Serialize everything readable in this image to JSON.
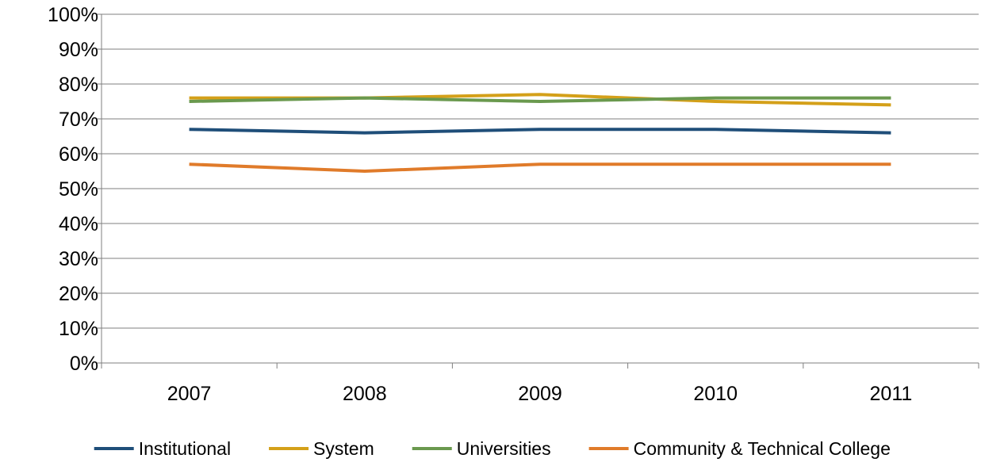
{
  "chart_data": {
    "type": "line",
    "categories": [
      "2007",
      "2008",
      "2009",
      "2010",
      "2011"
    ],
    "series": [
      {
        "name": "Institutional",
        "color": "#1f4e79",
        "values": [
          67,
          66,
          67,
          67,
          66
        ]
      },
      {
        "name": "System",
        "color": "#d4a019",
        "values": [
          76,
          76,
          77,
          75,
          74
        ]
      },
      {
        "name": "Universities",
        "color": "#6a994e",
        "values": [
          75,
          76,
          75,
          76,
          76
        ]
      },
      {
        "name": "Community & Technical College",
        "color": "#e07b2a",
        "values": [
          57,
          55,
          57,
          57,
          57
        ]
      }
    ],
    "ylim": [
      0,
      100
    ],
    "yticks": [
      "0%",
      "10%",
      "20%",
      "30%",
      "40%",
      "50%",
      "60%",
      "70%",
      "80%",
      "90%",
      "100%"
    ],
    "grid": true,
    "legend": "bottom",
    "title": "",
    "xlabel": "",
    "ylabel": ""
  }
}
